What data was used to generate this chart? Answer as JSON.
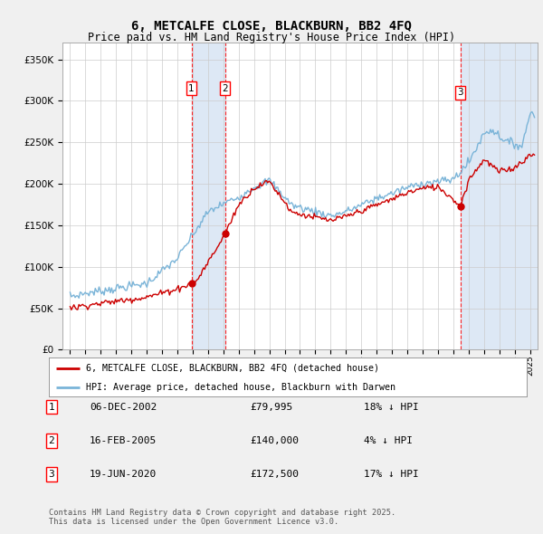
{
  "title": "6, METCALFE CLOSE, BLACKBURN, BB2 4FQ",
  "subtitle": "Price paid vs. HM Land Registry's House Price Index (HPI)",
  "legend_line1": "6, METCALFE CLOSE, BLACKBURN, BB2 4FQ (detached house)",
  "legend_line2": "HPI: Average price, detached house, Blackburn with Darwen",
  "footer": "Contains HM Land Registry data © Crown copyright and database right 2025.\nThis data is licensed under the Open Government Licence v3.0.",
  "transactions": [
    {
      "num": 1,
      "date": "06-DEC-2002",
      "price": 79995,
      "pct": "18%"
    },
    {
      "num": 2,
      "date": "16-FEB-2005",
      "price": 140000,
      "pct": "4%"
    },
    {
      "num": 3,
      "date": "19-JUN-2020",
      "price": 172500,
      "pct": "17%"
    }
  ],
  "t1_x": 2002.92,
  "t2_x": 2005.12,
  "t3_x": 2020.46,
  "table_rows": [
    {
      "num": 1,
      "date": "06-DEC-2002",
      "price": "£79,995",
      "pct": "18% ↓ HPI"
    },
    {
      "num": 2,
      "date": "16-FEB-2005",
      "price": "£140,000",
      "pct": "4% ↓ HPI"
    },
    {
      "num": 3,
      "date": "19-JUN-2020",
      "price": "£172,500",
      "pct": "17% ↓ HPI"
    }
  ],
  "hpi_color": "#7ab4d8",
  "price_color": "#cc0000",
  "bg_color": "#f0f4fa",
  "plot_bg": "#ffffff",
  "grid_color": "#cccccc",
  "shade_color": "#dde8f5",
  "ylim": [
    0,
    370000
  ],
  "yticks": [
    0,
    50000,
    100000,
    150000,
    200000,
    250000,
    300000,
    350000
  ],
  "xmin": 1994.5,
  "xmax": 2025.5
}
